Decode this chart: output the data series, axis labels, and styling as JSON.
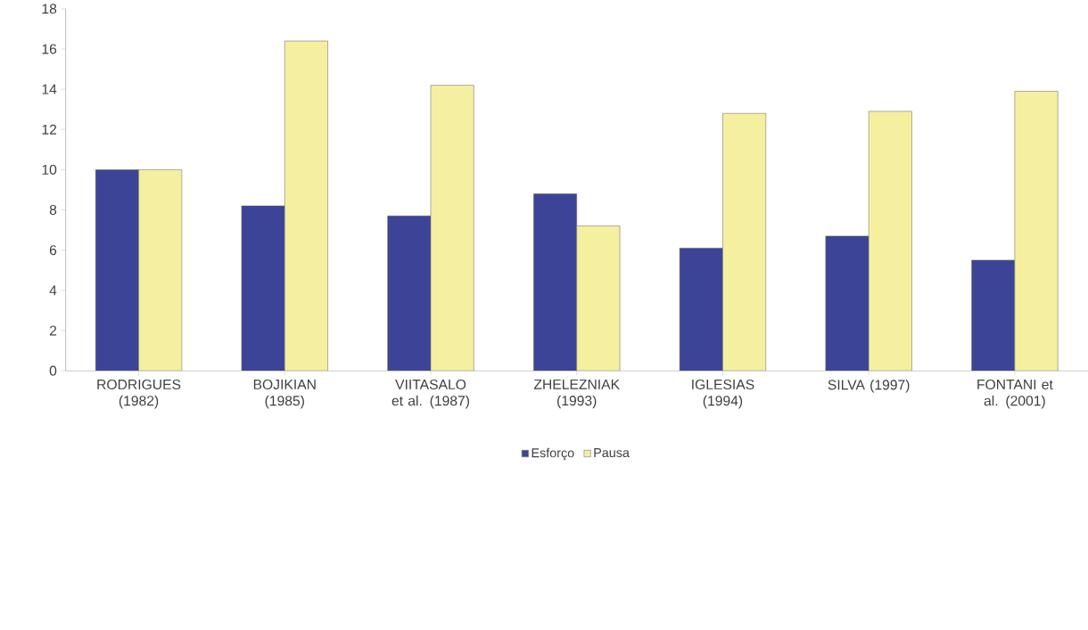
{
  "chart_data": {
    "type": "bar",
    "categories": [
      "RODRIGUES (1982)",
      "BOJIKIAN (1985)",
      "VIITASALO et al. (1987)",
      "ZHELEZNIAK (1993)",
      "IGLESIAS (1994)",
      "SILVA (1997)",
      "FONTANI et al. (2001)"
    ],
    "series": [
      {
        "name": "Esforço",
        "color": "#3c4498",
        "values": [
          10.0,
          8.2,
          7.7,
          8.8,
          6.1,
          6.7,
          5.5
        ]
      },
      {
        "name": "Pausa",
        "color": "#f5f0a0",
        "values": [
          10.0,
          16.4,
          14.2,
          7.2,
          12.8,
          12.9,
          13.9
        ]
      }
    ],
    "ylim": [
      0,
      18
    ],
    "yticks": [
      0,
      2,
      4,
      6,
      8,
      10,
      12,
      14,
      16,
      18
    ],
    "legend": "bottom"
  }
}
